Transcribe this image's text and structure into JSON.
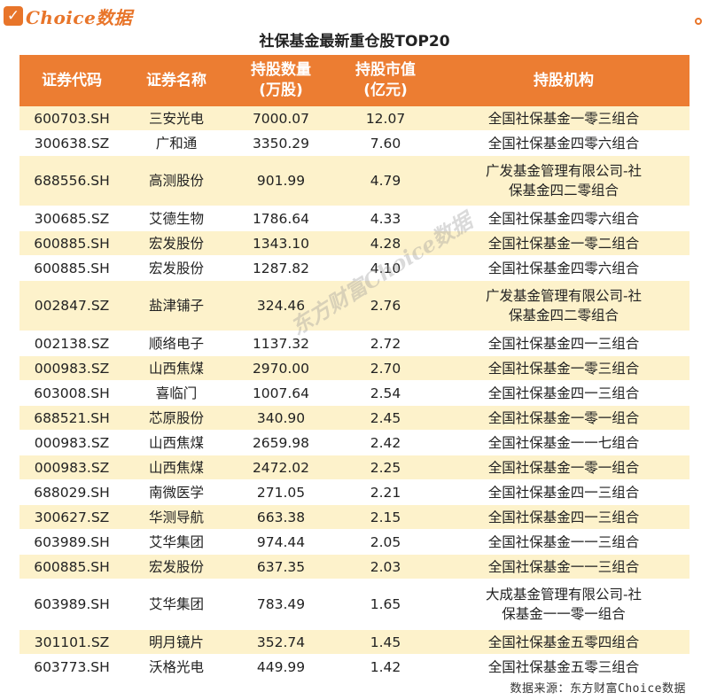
{
  "brand": {
    "logo_text": "Choice数据",
    "accent_color": "#e8752a"
  },
  "title": "社保基金最新重仓股TOP20",
  "table": {
    "headers": [
      "证券代码",
      "证券名称",
      "持股数量\n(万股)",
      "持股市值\n(亿元)",
      "持股机构"
    ],
    "header_color": "#ec7d32",
    "alt_row_color": "#fdf2cb",
    "rows": [
      [
        "600703.SH",
        "三安光电",
        "7000.07",
        "12.07",
        "全国社保基金一零三组合"
      ],
      [
        "300638.SZ",
        "广和通",
        "3350.29",
        "7.60",
        "全国社保基金四零六组合"
      ],
      [
        "688556.SH",
        "高测股份",
        "901.99",
        "4.79",
        "广发基金管理有限公司-社\n保基金四二零组合"
      ],
      [
        "300685.SZ",
        "艾德生物",
        "1786.64",
        "4.33",
        "全国社保基金四零六组合"
      ],
      [
        "600885.SH",
        "宏发股份",
        "1343.10",
        "4.28",
        "全国社保基金一零二组合"
      ],
      [
        "600885.SH",
        "宏发股份",
        "1287.82",
        "4.10",
        "全国社保基金四零六组合"
      ],
      [
        "002847.SZ",
        "盐津铺子",
        "324.46",
        "2.76",
        "广发基金管理有限公司-社\n保基金四二零组合"
      ],
      [
        "002138.SZ",
        "顺络电子",
        "1137.32",
        "2.72",
        "全国社保基金四一三组合"
      ],
      [
        "000983.SZ",
        "山西焦煤",
        "2970.00",
        "2.70",
        "全国社保基金一零三组合"
      ],
      [
        "603008.SH",
        "喜临门",
        "1007.64",
        "2.54",
        "全国社保基金四一三组合"
      ],
      [
        "688521.SH",
        "芯原股份",
        "340.90",
        "2.45",
        "全国社保基金一零一组合"
      ],
      [
        "000983.SZ",
        "山西焦煤",
        "2659.98",
        "2.42",
        "全国社保基金一一七组合"
      ],
      [
        "000983.SZ",
        "山西焦煤",
        "2472.02",
        "2.25",
        "全国社保基金一零一组合"
      ],
      [
        "688029.SH",
        "南微医学",
        "271.05",
        "2.21",
        "全国社保基金四一三组合"
      ],
      [
        "300627.SZ",
        "华测导航",
        "663.38",
        "2.15",
        "全国社保基金四一三组合"
      ],
      [
        "603989.SH",
        "艾华集团",
        "974.44",
        "2.05",
        "全国社保基金一一三组合"
      ],
      [
        "600885.SH",
        "宏发股份",
        "637.35",
        "2.03",
        "全国社保基金一一三组合"
      ],
      [
        "603989.SH",
        "艾华集团",
        "783.49",
        "1.65",
        "大成基金管理有限公司-社\n保基金一一零一组合"
      ],
      [
        "301101.SZ",
        "明月镜片",
        "352.74",
        "1.45",
        "全国社保基金五零四组合"
      ],
      [
        "603773.SH",
        "沃格光电",
        "449.99",
        "1.42",
        "全国社保基金五零三组合"
      ]
    ],
    "alt_rows": [
      0,
      2,
      4,
      6,
      8,
      10,
      12,
      14,
      16,
      18
    ]
  },
  "source": "数据来源：东方财富Choice数据",
  "watermark": "东方财富Choice数据"
}
